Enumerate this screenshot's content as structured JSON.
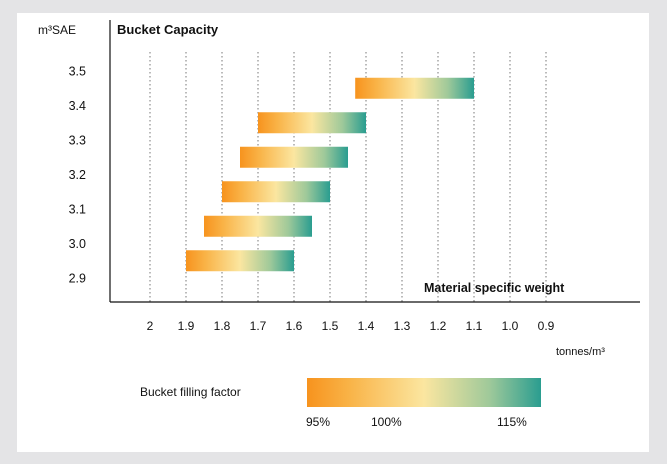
{
  "chart_data": {
    "type": "range-bar",
    "title": "Bucket Capacity",
    "y_unit_label": "m³SAE",
    "x_axis_title": "Material specific weight",
    "x_unit_label": "tonnes/m³",
    "x_ticks": [
      "2",
      "1.9",
      "1.8",
      "1.7",
      "1.6",
      "1.5",
      "1.4",
      "1.3",
      "1.2",
      "1.1",
      "1.0",
      "0.9"
    ],
    "x_range": [
      2.0,
      0.9
    ],
    "x_reversed": true,
    "grid_vertical": true,
    "bars": [
      {
        "capacity": "3.5",
        "start": 1.43,
        "end": 1.1
      },
      {
        "capacity": "3.4",
        "start": 1.7,
        "end": 1.4
      },
      {
        "capacity": "3.3",
        "start": 1.75,
        "end": 1.45
      },
      {
        "capacity": "3.2",
        "start": 1.8,
        "end": 1.5
      },
      {
        "capacity": "3.1",
        "start": 1.85,
        "end": 1.55
      },
      {
        "capacity": "3.0",
        "start": 1.9,
        "end": 1.6
      }
    ],
    "gradient_colors": [
      "#f7931e",
      "#fbe6a0",
      "#2a9d90"
    ],
    "legend": {
      "label": "Bucket filling factor",
      "ticks": [
        "95%",
        "100%",
        "115%"
      ]
    }
  }
}
